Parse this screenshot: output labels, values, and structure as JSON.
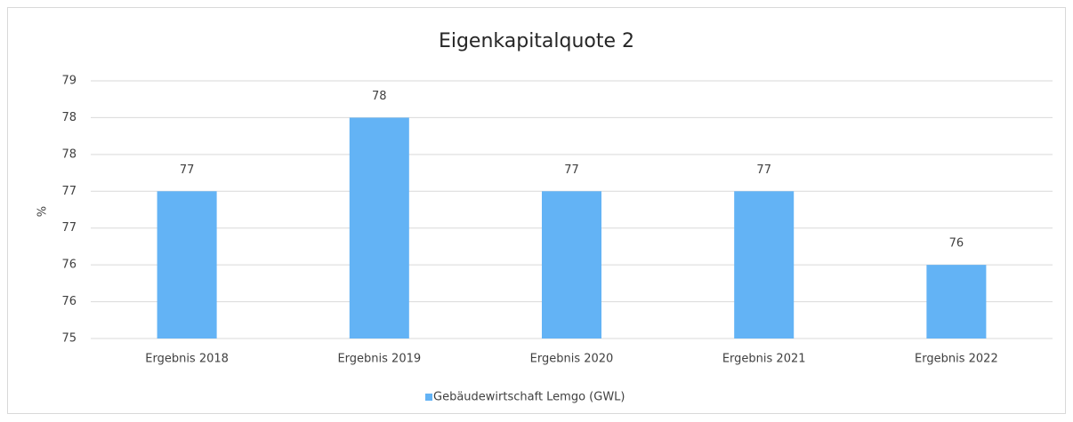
{
  "chart_data": {
    "type": "bar",
    "title": "Eigenkapitalquote 2",
    "y_label": "%",
    "categories": [
      "Ergebnis 2018",
      "Ergebnis 2019",
      "Ergebnis 2020",
      "Ergebnis 2021",
      "Ergebnis 2022"
    ],
    "series": [
      {
        "name": "Gebäudewirtschaft Lemgo (GWL)",
        "color": "#63b3f5",
        "values": [
          77,
          78,
          77,
          77,
          76
        ]
      }
    ],
    "ylim": [
      75,
      78.5
    ],
    "yticks": [
      75,
      {
        "value": 75.5,
        "label": "76"
      },
      76,
      {
        "value": 76.5,
        "label": "77"
      },
      77,
      {
        "value": 77.5,
        "label": "78"
      },
      78,
      {
        "value": 78.5,
        "label": "79"
      }
    ],
    "grid": true,
    "legend": "bottom"
  }
}
